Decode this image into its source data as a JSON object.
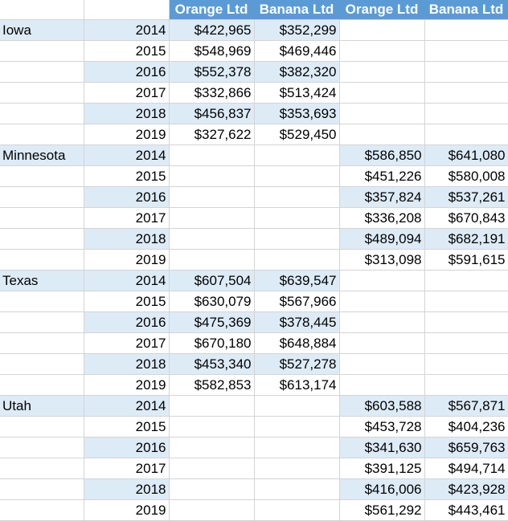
{
  "headers": {
    "orange_a": "Orange Ltd",
    "banana_a": "Banana Ltd",
    "orange_b": "Orange Ltd",
    "banana_b": "Banana Ltd"
  },
  "groups": [
    {
      "state": "Iowa",
      "side": "left",
      "rows": [
        {
          "year": "2014",
          "orange": "$422,965",
          "banana": "$352,299"
        },
        {
          "year": "2015",
          "orange": "$548,969",
          "banana": "$469,446"
        },
        {
          "year": "2016",
          "orange": "$552,378",
          "banana": "$382,320"
        },
        {
          "year": "2017",
          "orange": "$332,866",
          "banana": "$513,424"
        },
        {
          "year": "2018",
          "orange": "$456,837",
          "banana": "$353,693"
        },
        {
          "year": "2019",
          "orange": "$327,622",
          "banana": "$529,450"
        }
      ]
    },
    {
      "state": "Minnesota",
      "side": "right",
      "rows": [
        {
          "year": "2014",
          "orange": "$586,850",
          "banana": "$641,080"
        },
        {
          "year": "2015",
          "orange": "$451,226",
          "banana": "$580,008"
        },
        {
          "year": "2016",
          "orange": "$357,824",
          "banana": "$537,261"
        },
        {
          "year": "2017",
          "orange": "$336,208",
          "banana": "$670,843"
        },
        {
          "year": "2018",
          "orange": "$489,094",
          "banana": "$682,191"
        },
        {
          "year": "2019",
          "orange": "$313,098",
          "banana": "$591,615"
        }
      ]
    },
    {
      "state": "Texas",
      "side": "left",
      "rows": [
        {
          "year": "2014",
          "orange": "$607,504",
          "banana": "$639,547"
        },
        {
          "year": "2015",
          "orange": "$630,079",
          "banana": "$567,966"
        },
        {
          "year": "2016",
          "orange": "$475,369",
          "banana": "$378,445"
        },
        {
          "year": "2017",
          "orange": "$670,180",
          "banana": "$648,884"
        },
        {
          "year": "2018",
          "orange": "$453,340",
          "banana": "$527,278"
        },
        {
          "year": "2019",
          "orange": "$582,853",
          "banana": "$613,174"
        }
      ]
    },
    {
      "state": "Utah",
      "side": "right",
      "rows": [
        {
          "year": "2014",
          "orange": "$603,588",
          "banana": "$567,871"
        },
        {
          "year": "2015",
          "orange": "$453,728",
          "banana": "$404,236"
        },
        {
          "year": "2016",
          "orange": "$341,630",
          "banana": "$659,763"
        },
        {
          "year": "2017",
          "orange": "$391,125",
          "banana": "$494,714"
        },
        {
          "year": "2018",
          "orange": "$416,006",
          "banana": "$423,928"
        },
        {
          "year": "2019",
          "orange": "$561,292",
          "banana": "$443,461"
        }
      ]
    }
  ],
  "colors": {
    "header_fill": "#5b9bd5",
    "band_fill": "#ddebf7",
    "gridline": "#d4d4d4"
  }
}
